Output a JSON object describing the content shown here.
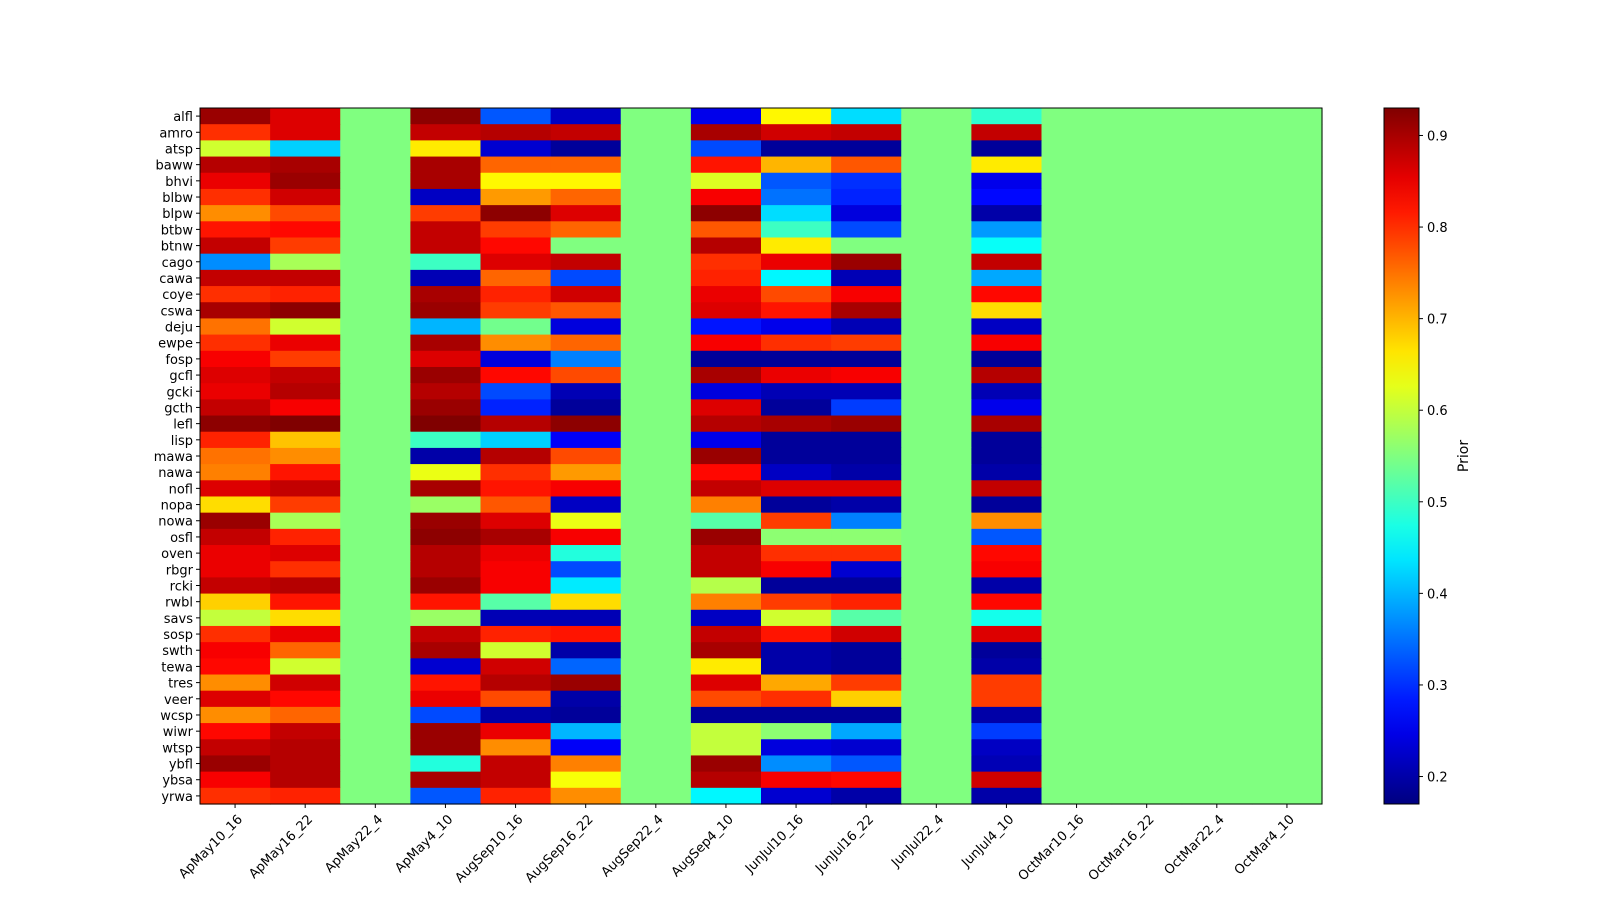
{
  "chart_data": {
    "type": "heatmap",
    "title": "",
    "xlabel": "",
    "ylabel": "",
    "colormap": "jet",
    "colorbar": {
      "label": "Prior",
      "range": [
        0.17,
        0.93
      ],
      "ticks": [
        0.2,
        0.3,
        0.4,
        0.5,
        0.6,
        0.7,
        0.8,
        0.9
      ]
    },
    "x_categories": [
      "ApMay10_16",
      "ApMay16_22",
      "ApMay22_4",
      "ApMay4_10",
      "AugSep10_16",
      "AugSep16_22",
      "AugSep22_4",
      "AugSep4_10",
      "JunJul10_16",
      "JunJul16_22",
      "JunJul22_4",
      "JunJul4_10",
      "OctMar10_16",
      "OctMar16_22",
      "OctMar22_4",
      "OctMar4_10"
    ],
    "y_categories": [
      "alfl",
      "amro",
      "atsp",
      "baww",
      "bhvi",
      "blbw",
      "blpw",
      "btbw",
      "btnw",
      "cago",
      "cawa",
      "coye",
      "cswa",
      "deju",
      "ewpe",
      "fosp",
      "gcfl",
      "gcki",
      "gcth",
      "lefl",
      "lisp",
      "mawa",
      "nawa",
      "nofl",
      "nopa",
      "nowa",
      "osfl",
      "oven",
      "rbgr",
      "rcki",
      "rwbl",
      "savs",
      "sosp",
      "swth",
      "tewa",
      "tres",
      "veer",
      "wcsp",
      "wiwr",
      "wtsp",
      "ybfl",
      "ybsa",
      "yrwa"
    ],
    "values": [
      [
        0.91,
        0.86,
        0.55,
        0.92,
        0.33,
        0.22,
        0.55,
        0.25,
        0.65,
        0.43,
        0.55,
        0.49,
        0.55,
        0.55,
        0.55,
        0.55
      ],
      [
        0.8,
        0.86,
        0.55,
        0.88,
        0.89,
        0.88,
        0.55,
        0.9,
        0.87,
        0.88,
        0.55,
        0.88,
        0.55,
        0.55,
        0.55,
        0.55
      ],
      [
        0.61,
        0.42,
        0.55,
        0.66,
        0.23,
        0.19,
        0.55,
        0.32,
        0.19,
        0.19,
        0.55,
        0.19,
        0.55,
        0.55,
        0.55,
        0.55
      ],
      [
        0.89,
        0.9,
        0.55,
        0.9,
        0.76,
        0.76,
        0.55,
        0.82,
        0.7,
        0.77,
        0.55,
        0.66,
        0.55,
        0.55,
        0.55,
        0.55
      ],
      [
        0.85,
        0.91,
        0.55,
        0.9,
        0.65,
        0.65,
        0.55,
        0.62,
        0.33,
        0.3,
        0.55,
        0.25,
        0.55,
        0.55,
        0.55,
        0.55
      ],
      [
        0.8,
        0.87,
        0.55,
        0.22,
        0.72,
        0.76,
        0.55,
        0.84,
        0.35,
        0.29,
        0.55,
        0.27,
        0.55,
        0.55,
        0.55,
        0.55
      ],
      [
        0.73,
        0.78,
        0.55,
        0.79,
        0.92,
        0.86,
        0.55,
        0.92,
        0.43,
        0.24,
        0.55,
        0.2,
        0.55,
        0.55,
        0.55,
        0.55
      ],
      [
        0.82,
        0.83,
        0.55,
        0.88,
        0.79,
        0.76,
        0.55,
        0.77,
        0.5,
        0.32,
        0.55,
        0.38,
        0.55,
        0.55,
        0.55,
        0.55
      ],
      [
        0.88,
        0.79,
        0.55,
        0.88,
        0.83,
        0.55,
        0.55,
        0.89,
        0.66,
        0.55,
        0.55,
        0.46,
        0.55,
        0.55,
        0.55,
        0.55
      ],
      [
        0.37,
        0.58,
        0.55,
        0.5,
        0.86,
        0.88,
        0.55,
        0.8,
        0.85,
        0.91,
        0.55,
        0.88,
        0.55,
        0.55,
        0.55,
        0.55
      ],
      [
        0.88,
        0.88,
        0.55,
        0.21,
        0.76,
        0.32,
        0.55,
        0.81,
        0.45,
        0.21,
        0.55,
        0.39,
        0.55,
        0.55,
        0.55,
        0.55
      ],
      [
        0.8,
        0.81,
        0.55,
        0.9,
        0.81,
        0.87,
        0.55,
        0.85,
        0.78,
        0.84,
        0.55,
        0.83,
        0.55,
        0.55,
        0.55,
        0.55
      ],
      [
        0.9,
        0.92,
        0.55,
        0.91,
        0.79,
        0.77,
        0.55,
        0.86,
        0.82,
        0.9,
        0.55,
        0.67,
        0.55,
        0.55,
        0.55,
        0.55
      ],
      [
        0.75,
        0.61,
        0.55,
        0.4,
        0.54,
        0.24,
        0.55,
        0.28,
        0.25,
        0.21,
        0.55,
        0.22,
        0.55,
        0.55,
        0.55,
        0.55
      ],
      [
        0.8,
        0.85,
        0.55,
        0.9,
        0.73,
        0.76,
        0.55,
        0.84,
        0.8,
        0.79,
        0.55,
        0.84,
        0.55,
        0.55,
        0.55,
        0.55
      ],
      [
        0.84,
        0.79,
        0.55,
        0.86,
        0.24,
        0.36,
        0.55,
        0.19,
        0.19,
        0.19,
        0.55,
        0.19,
        0.55,
        0.55,
        0.55,
        0.55
      ],
      [
        0.86,
        0.88,
        0.55,
        0.91,
        0.83,
        0.78,
        0.55,
        0.9,
        0.85,
        0.84,
        0.55,
        0.89,
        0.55,
        0.55,
        0.55,
        0.55
      ],
      [
        0.85,
        0.89,
        0.55,
        0.89,
        0.32,
        0.21,
        0.55,
        0.24,
        0.21,
        0.21,
        0.55,
        0.21,
        0.55,
        0.55,
        0.55,
        0.55
      ],
      [
        0.88,
        0.84,
        0.55,
        0.91,
        0.29,
        0.19,
        0.55,
        0.86,
        0.19,
        0.31,
        0.55,
        0.25,
        0.55,
        0.55,
        0.55,
        0.55
      ],
      [
        0.92,
        0.93,
        0.55,
        0.93,
        0.89,
        0.92,
        0.55,
        0.89,
        0.9,
        0.91,
        0.55,
        0.9,
        0.55,
        0.55,
        0.55,
        0.55
      ],
      [
        0.81,
        0.69,
        0.55,
        0.5,
        0.42,
        0.26,
        0.55,
        0.25,
        0.19,
        0.19,
        0.55,
        0.19,
        0.55,
        0.55,
        0.55,
        0.55
      ],
      [
        0.75,
        0.73,
        0.55,
        0.2,
        0.89,
        0.78,
        0.55,
        0.91,
        0.19,
        0.19,
        0.55,
        0.19,
        0.55,
        0.55,
        0.55,
        0.55
      ],
      [
        0.74,
        0.82,
        0.55,
        0.63,
        0.8,
        0.72,
        0.55,
        0.83,
        0.22,
        0.2,
        0.55,
        0.2,
        0.55,
        0.55,
        0.55,
        0.55
      ],
      [
        0.86,
        0.88,
        0.55,
        0.9,
        0.82,
        0.84,
        0.55,
        0.88,
        0.86,
        0.86,
        0.55,
        0.88,
        0.55,
        0.55,
        0.55,
        0.55
      ],
      [
        0.67,
        0.79,
        0.55,
        0.57,
        0.77,
        0.22,
        0.55,
        0.74,
        0.19,
        0.2,
        0.55,
        0.19,
        0.55,
        0.55,
        0.55,
        0.55
      ],
      [
        0.91,
        0.58,
        0.55,
        0.91,
        0.86,
        0.63,
        0.55,
        0.52,
        0.79,
        0.36,
        0.55,
        0.73,
        0.55,
        0.55,
        0.55,
        0.55
      ],
      [
        0.88,
        0.81,
        0.55,
        0.92,
        0.9,
        0.84,
        0.55,
        0.91,
        0.56,
        0.56,
        0.55,
        0.33,
        0.55,
        0.55,
        0.55,
        0.55
      ],
      [
        0.85,
        0.86,
        0.55,
        0.89,
        0.85,
        0.48,
        0.55,
        0.88,
        0.8,
        0.8,
        0.55,
        0.83,
        0.55,
        0.55,
        0.55,
        0.55
      ],
      [
        0.85,
        0.8,
        0.55,
        0.89,
        0.84,
        0.32,
        0.55,
        0.88,
        0.84,
        0.23,
        0.55,
        0.84,
        0.55,
        0.55,
        0.55,
        0.55
      ],
      [
        0.88,
        0.89,
        0.55,
        0.91,
        0.84,
        0.44,
        0.55,
        0.59,
        0.19,
        0.19,
        0.55,
        0.2,
        0.55,
        0.55,
        0.55,
        0.55
      ],
      [
        0.68,
        0.82,
        0.55,
        0.82,
        0.52,
        0.67,
        0.55,
        0.74,
        0.79,
        0.81,
        0.55,
        0.83,
        0.55,
        0.55,
        0.55,
        0.55
      ],
      [
        0.6,
        0.67,
        0.55,
        0.57,
        0.21,
        0.21,
        0.55,
        0.22,
        0.61,
        0.52,
        0.55,
        0.47,
        0.55,
        0.55,
        0.55,
        0.55
      ],
      [
        0.8,
        0.85,
        0.55,
        0.88,
        0.81,
        0.82,
        0.55,
        0.88,
        0.82,
        0.87,
        0.55,
        0.86,
        0.55,
        0.55,
        0.55,
        0.55
      ],
      [
        0.84,
        0.76,
        0.55,
        0.9,
        0.61,
        0.2,
        0.55,
        0.9,
        0.2,
        0.19,
        0.55,
        0.19,
        0.55,
        0.55,
        0.55,
        0.55
      ],
      [
        0.83,
        0.61,
        0.55,
        0.23,
        0.87,
        0.34,
        0.55,
        0.66,
        0.2,
        0.19,
        0.55,
        0.2,
        0.55,
        0.55,
        0.55,
        0.55
      ],
      [
        0.73,
        0.87,
        0.55,
        0.82,
        0.89,
        0.91,
        0.55,
        0.86,
        0.71,
        0.79,
        0.55,
        0.79,
        0.55,
        0.55,
        0.55,
        0.55
      ],
      [
        0.86,
        0.83,
        0.55,
        0.85,
        0.78,
        0.2,
        0.55,
        0.78,
        0.8,
        0.68,
        0.55,
        0.79,
        0.55,
        0.55,
        0.55,
        0.55
      ],
      [
        0.73,
        0.76,
        0.55,
        0.32,
        0.2,
        0.19,
        0.55,
        0.19,
        0.19,
        0.19,
        0.55,
        0.2,
        0.55,
        0.55,
        0.55,
        0.55
      ],
      [
        0.83,
        0.88,
        0.55,
        0.91,
        0.85,
        0.4,
        0.55,
        0.6,
        0.56,
        0.39,
        0.55,
        0.31,
        0.55,
        0.55,
        0.55,
        0.55
      ],
      [
        0.88,
        0.89,
        0.55,
        0.91,
        0.73,
        0.26,
        0.55,
        0.6,
        0.24,
        0.23,
        0.55,
        0.22,
        0.55,
        0.55,
        0.55,
        0.55
      ],
      [
        0.91,
        0.89,
        0.55,
        0.48,
        0.88,
        0.74,
        0.55,
        0.91,
        0.37,
        0.33,
        0.55,
        0.21,
        0.55,
        0.55,
        0.55,
        0.55
      ],
      [
        0.84,
        0.89,
        0.55,
        0.9,
        0.88,
        0.64,
        0.55,
        0.89,
        0.84,
        0.83,
        0.55,
        0.87,
        0.55,
        0.55,
        0.55,
        0.55
      ],
      [
        0.8,
        0.81,
        0.55,
        0.33,
        0.81,
        0.73,
        0.55,
        0.45,
        0.23,
        0.2,
        0.55,
        0.2,
        0.55,
        0.55,
        0.55,
        0.55
      ]
    ]
  }
}
